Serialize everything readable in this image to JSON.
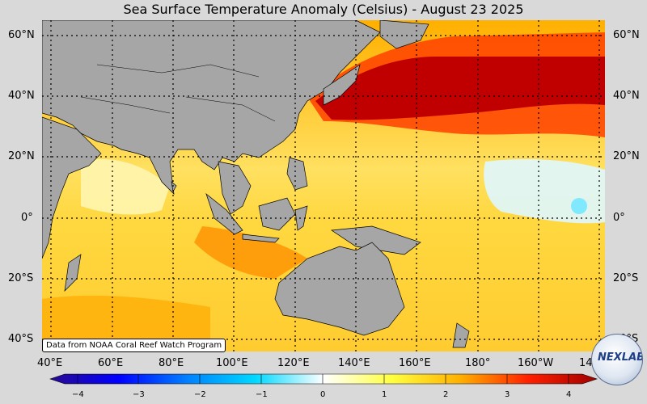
{
  "title": "Sea Surface Temperature Anomaly (Celsius) - August 23 2025",
  "lat_labels": [
    "60°N",
    "40°N",
    "20°N",
    "0°",
    "20°S",
    "40°S"
  ],
  "lon_labels": [
    "40°E",
    "60°E",
    "80°E",
    "100°E",
    "120°E",
    "140°E",
    "160°E",
    "180°",
    "160°W",
    "140°W"
  ],
  "colorbar": {
    "ticks": [
      "−4",
      "−3",
      "−2",
      "−1",
      "0",
      "1",
      "2",
      "3",
      "4"
    ],
    "range": [
      -4,
      4
    ],
    "colors": [
      "#2a0a8f",
      "#0000ff",
      "#0080ff",
      "#00d8ff",
      "#ffffff",
      "#ffff40",
      "#ffb000",
      "#ff2000",
      "#a00000"
    ]
  },
  "credit": "Data from NOAA Coral Reef Watch Program",
  "logo_text": "NEXLAB",
  "colors": {
    "land": "#a6a6a6",
    "background": "#d9d9d9",
    "hot": "#d00000",
    "warm": "#ffcc00",
    "cool": "#bfefff"
  }
}
